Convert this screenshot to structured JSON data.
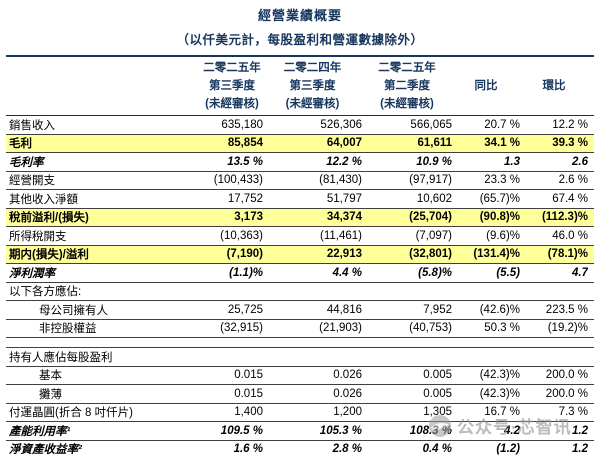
{
  "title": "經營業績概要",
  "subtitle": "（以仟美元計，每股盈利和營運數據除外）",
  "colors": {
    "navy_accent": "#17375E",
    "highlight_yellow": "#FFFF99",
    "watermark_grey": "#969696"
  },
  "table": {
    "column_headers": [
      {
        "lines": [
          "二零二五年",
          "第三季度",
          "(未經審核)"
        ]
      },
      {
        "lines": [
          "二零二四年",
          "第三季度",
          "(未經審核)"
        ]
      },
      {
        "lines": [
          "二零二五年",
          "第二季度",
          "(未經審核)"
        ]
      },
      {
        "lines": [
          "同比"
        ]
      },
      {
        "lines": [
          "環比"
        ]
      }
    ],
    "rows": [
      {
        "label": "銷售收入",
        "values": [
          "635,180",
          "526,306",
          "566,065",
          "20.7 %",
          "12.2 %"
        ]
      },
      {
        "label": "毛利",
        "values": [
          "85,854",
          "64,007",
          "61,611",
          "34.1 %",
          "39.3 %"
        ],
        "highlight": true
      },
      {
        "label": "毛利率",
        "values": [
          "13.5 %",
          "12.2 %",
          "10.9 %",
          "1.3",
          "2.6"
        ],
        "italic": true
      },
      {
        "label": "經營開支",
        "values": [
          "(100,433)",
          "(81,430)",
          "(97,917)",
          "23.3 %",
          "2.6 %"
        ]
      },
      {
        "label": "其他收入淨額",
        "values": [
          "17,752",
          "51,797",
          "10,602",
          "(65.7)%",
          "67.4 %"
        ]
      },
      {
        "label": "稅前溢利/(損失)",
        "values": [
          "3,173",
          "34,374",
          "(25,704)",
          "(90.8)%",
          "(112.3)%"
        ],
        "highlight": true
      },
      {
        "label": "所得稅開支",
        "values": [
          "(10,363)",
          "(11,461)",
          "(7,097)",
          "(9.6)%",
          "46.0 %"
        ]
      },
      {
        "label": "期内(損失)/溢利",
        "values": [
          "(7,190)",
          "22,913",
          "(32,801)",
          "(131.4)%",
          "(78.1)%"
        ],
        "highlight": true
      },
      {
        "label": "淨利潤率",
        "values": [
          "(1.1)%",
          "4.4 %",
          "(5.8)%",
          "(5.5)",
          "4.7"
        ],
        "italic": true
      },
      {
        "label": "以下各方應佔:",
        "values": [
          "",
          "",
          "",
          "",
          ""
        ]
      },
      {
        "label": "母公司擁有人",
        "values": [
          "25,725",
          "44,816",
          "7,952",
          "(42.6)%",
          "223.5 %"
        ],
        "indent": true
      },
      {
        "label": "非控股權益",
        "values": [
          "(32,915)",
          "(21,903)",
          "(40,753)",
          "50.3 %",
          "(19.2)%"
        ],
        "indent": true
      },
      {
        "label": "",
        "values": [
          "",
          "",
          "",
          "",
          ""
        ],
        "spacer": true
      },
      {
        "label": "持有人應佔每股盈利",
        "values": [
          "",
          "",
          "",
          "",
          ""
        ]
      },
      {
        "label": "基本",
        "values": [
          "0.015",
          "0.026",
          "0.005",
          "(42.3)%",
          "200.0 %"
        ],
        "indent": true
      },
      {
        "label": "攤薄",
        "values": [
          "0.015",
          "0.026",
          "0.005",
          "(42.3)%",
          "200.0 %"
        ],
        "indent": true
      },
      {
        "label": "付運晶圓(折合 8 吋仟片)",
        "values": [
          "1,400",
          "1,200",
          "1,305",
          "16.7 %",
          "7.3 %"
        ]
      },
      {
        "label": "產能利用率¹",
        "values": [
          "109.5 %",
          "105.3 %",
          "108.3 %",
          "4.2",
          "1.2"
        ],
        "italic": true
      },
      {
        "label": "淨資產收益率²",
        "values": [
          "1.6 %",
          "2.8 %",
          "0.4 %",
          "(1.2)",
          "1.2"
        ],
        "italic": true
      }
    ]
  },
  "watermark": {
    "text": "公众号·芯智讯",
    "logo": "camera-swirl-logo"
  }
}
